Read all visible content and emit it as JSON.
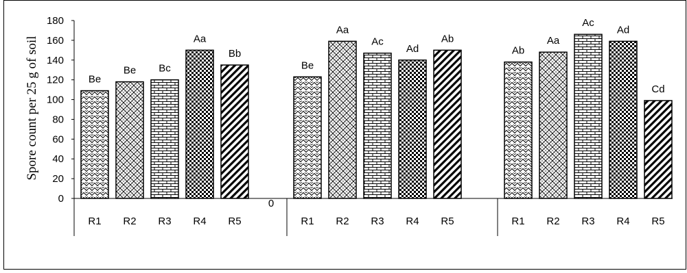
{
  "chart_data": {
    "type": "bar",
    "ylabel": "Spore count per 25 g of soil",
    "ylim": [
      0,
      180
    ],
    "yticks": [
      "0",
      "20",
      "40",
      "60",
      "80",
      "100",
      "120",
      "140",
      "160",
      "180"
    ],
    "groups": [
      {
        "bars": [
          {
            "category": "R1",
            "value": 109,
            "label": "Be",
            "pattern": "zigzag"
          },
          {
            "category": "R2",
            "value": 118,
            "label": "Be",
            "pattern": "diamond"
          },
          {
            "category": "R3",
            "value": 120,
            "label": "Bc",
            "pattern": "brick"
          },
          {
            "category": "R4",
            "value": 150,
            "label": "Aa",
            "pattern": "checker"
          },
          {
            "category": "R5",
            "value": 135,
            "label": "Bb",
            "pattern": "diagonal"
          }
        ]
      },
      {
        "bars": [
          {
            "category": "R1",
            "value": 123,
            "label": "Be",
            "pattern": "zigzag"
          },
          {
            "category": "R2",
            "value": 159,
            "label": "Aa",
            "pattern": "diamond"
          },
          {
            "category": "R3",
            "value": 147,
            "label": "Ac",
            "pattern": "brick"
          },
          {
            "category": "R4",
            "value": 140,
            "label": "Ad",
            "pattern": "checker"
          },
          {
            "category": "R5",
            "value": 150,
            "label": "Ab",
            "pattern": "diagonal"
          }
        ]
      },
      {
        "bars": [
          {
            "category": "R1",
            "value": 138,
            "label": "Ab",
            "pattern": "zigzag"
          },
          {
            "category": "R2",
            "value": 148,
            "label": "Aa",
            "pattern": "diamond"
          },
          {
            "category": "R3",
            "value": 166,
            "label": "Ac",
            "pattern": "brick"
          },
          {
            "category": "R4",
            "value": 159,
            "label": "Ad",
            "pattern": "checker"
          },
          {
            "category": "R5",
            "value": 99,
            "label": "Cd",
            "pattern": "diagonal"
          }
        ]
      }
    ],
    "gap_label": "0",
    "grid": false,
    "legend": "none",
    "colors": {
      "bar_fill": "#ffffff",
      "bar_stroke": "#000000",
      "pattern_ink": "#000000"
    }
  }
}
